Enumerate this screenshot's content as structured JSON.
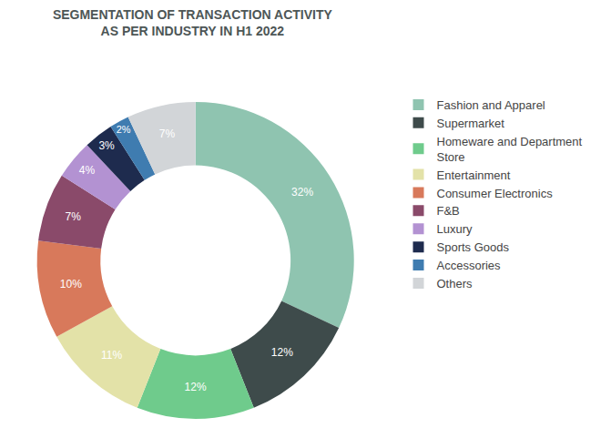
{
  "chart_data": {
    "type": "pie",
    "title": "SEGMENTATION OF TRANSACTION ACTIVITY\nAS PER INDUSTRY IN H1 2022",
    "categories": [
      "Fashion and Apparel",
      "Supermarket",
      "Homeware and Department Store",
      "Entertainment",
      "Consumer Electronics",
      "F&B",
      "Luxury",
      "Sports Goods",
      "Accessories",
      "Others"
    ],
    "values": [
      32,
      12,
      12,
      11,
      10,
      7,
      4,
      3,
      2,
      7
    ],
    "value_labels": [
      "32%",
      "12%",
      "12%",
      "11%",
      "10%",
      "7%",
      "4%",
      "3%",
      "2%",
      "7%"
    ],
    "colors": [
      "#8fc4b0",
      "#3e4b4b",
      "#6fcb8c",
      "#e3e2a8",
      "#d8795b",
      "#8a4a6a",
      "#b392d2",
      "#1e2b4e",
      "#3f7cb0",
      "#d2d5d8"
    ],
    "data_labels": true,
    "legend": "right"
  }
}
